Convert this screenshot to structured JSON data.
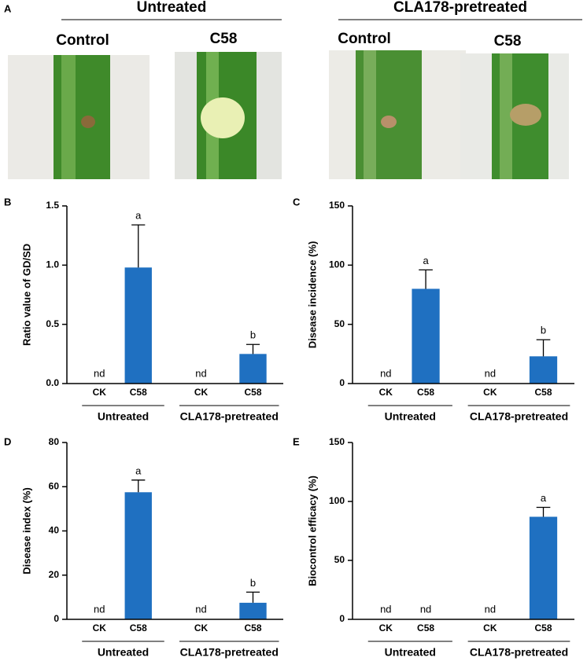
{
  "panel_a": {
    "letter": "A",
    "groups": [
      "Untreated",
      "CLA178-pretreated"
    ],
    "photos": [
      "Control",
      "C58",
      "Control",
      "C58"
    ]
  },
  "chart_data": [
    {
      "type": "bar",
      "panel": "B",
      "y_label": "Ratio value of GD/SD",
      "categories": [
        "CK",
        "C58",
        "CK",
        "C58"
      ],
      "groups": [
        "Untreated",
        "CLA178-pretreated"
      ],
      "color": "#1f70c1",
      "values": [
        null,
        0.98,
        null,
        0.25
      ],
      "errors": [
        null,
        0.36,
        null,
        0.08
      ],
      "value_labels": [
        "nd",
        null,
        "nd",
        null
      ],
      "significance": [
        null,
        "a",
        null,
        "b"
      ],
      "ylim": [
        0,
        1.5
      ],
      "yticks": [
        {
          "value": 0,
          "label": "0.0"
        },
        0.5,
        {
          "value": 1,
          "label": "1.0"
        },
        1.5
      ]
    },
    {
      "type": "bar",
      "panel": "C",
      "y_label": "Disease incidence (%)",
      "categories": [
        "CK",
        "C58",
        "CK",
        "C58"
      ],
      "groups": [
        "Untreated",
        "CLA178-pretreated"
      ],
      "color": "#1f70c1",
      "values": [
        null,
        80,
        null,
        23
      ],
      "errors": [
        null,
        16,
        null,
        14
      ],
      "value_labels": [
        "nd",
        null,
        "nd",
        null
      ],
      "significance": [
        null,
        "a",
        null,
        "b"
      ],
      "ylim": [
        0,
        150
      ],
      "yticks": [
        0,
        50,
        100,
        150
      ]
    },
    {
      "type": "bar",
      "panel": "D",
      "y_label": "Disease index (%)",
      "categories": [
        "CK",
        "C58",
        "CK",
        "C58"
      ],
      "groups": [
        "Untreated",
        "CLA178-pretreated"
      ],
      "color": "#1f70c1",
      "values": [
        null,
        57.5,
        null,
        7.5
      ],
      "errors": [
        null,
        5.5,
        null,
        4.8
      ],
      "value_labels": [
        "nd",
        null,
        "nd",
        null
      ],
      "significance": [
        null,
        "a",
        null,
        "b"
      ],
      "ylim": [
        0,
        80
      ],
      "yticks": [
        0,
        20,
        40,
        60,
        80
      ]
    },
    {
      "type": "bar",
      "panel": "E",
      "y_label": "Biocontrol efficacy (%)",
      "categories": [
        "CK",
        "C58",
        "CK",
        "C58"
      ],
      "groups": [
        "Untreated",
        "CLA178-pretreated"
      ],
      "color": "#1f70c1",
      "values": [
        null,
        null,
        null,
        87
      ],
      "errors": [
        null,
        null,
        null,
        8
      ],
      "value_labels": [
        "nd",
        "nd",
        "nd",
        null
      ],
      "significance": [
        null,
        null,
        null,
        "a"
      ],
      "ylim": [
        0,
        150
      ],
      "yticks": [
        0,
        50,
        100,
        150
      ]
    }
  ]
}
